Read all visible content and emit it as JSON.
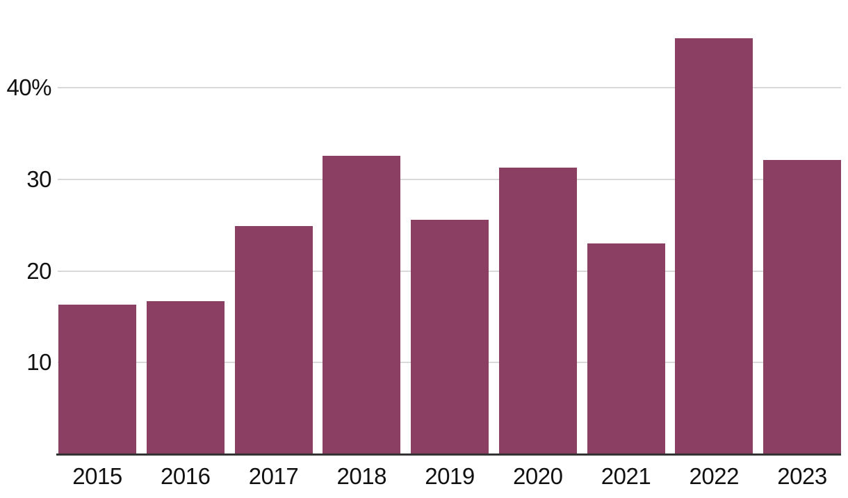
{
  "chart_data": {
    "type": "bar",
    "title": "",
    "xlabel": "",
    "ylabel": "",
    "categories": [
      "2015",
      "2016",
      "2017",
      "2018",
      "2019",
      "2020",
      "2021",
      "2022",
      "2023"
    ],
    "values": [
      16.3,
      16.7,
      24.9,
      32.6,
      25.6,
      31.3,
      23.0,
      45.4,
      32.1
    ],
    "unit": "%",
    "ylim": [
      0,
      48
    ],
    "yticks": [
      {
        "value": 10,
        "label": "10"
      },
      {
        "value": 20,
        "label": "20"
      },
      {
        "value": 30,
        "label": "30"
      },
      {
        "value": 40,
        "label": "40%"
      }
    ],
    "grid": "horizontal-only",
    "legend": "none",
    "colors": {
      "bar": "#8B3F62",
      "gridline": "#D9D9D9",
      "axis_line": "#333333",
      "text": "#111111",
      "background": "#FFFFFF"
    }
  }
}
